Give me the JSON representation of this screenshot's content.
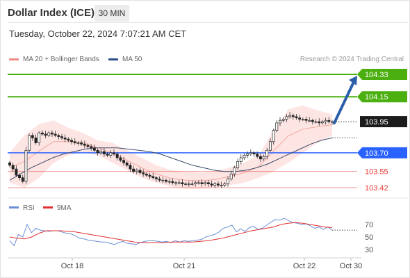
{
  "header": {
    "title": "Dollar Index (ICE)",
    "interval": "30 MIN",
    "timestamp": "Tuesday, October 22, 2024 7:07:21 AM CET"
  },
  "legend": {
    "ma20_label": "MA 20 + Bollinger Bands",
    "ma50_label": "MA 50",
    "research": "Research © 2024 Trading Central"
  },
  "colors": {
    "green": "#4caf10",
    "blue": "#2962ff",
    "red": "#e53935",
    "dark": "#1c1c1c",
    "bollinger": "#fde0de",
    "ma50": "#3a4a6b",
    "rsi": "#6a8fd6",
    "rsi_ma": "#e03030",
    "arrow": "#2b5ea8"
  },
  "chart_data": [
    {
      "type": "candlestick",
      "title": "Dollar Index (ICE)",
      "x_tick_labels": [
        "Oct 18",
        "Oct 21",
        "Oct 22",
        "Oct 30"
      ],
      "price_levels": [
        {
          "label": "104.33",
          "value": 104.33,
          "color": "#4caf10",
          "style": "resistance"
        },
        {
          "label": "104.15",
          "value": 104.15,
          "color": "#4caf10",
          "style": "resistance"
        },
        {
          "label": "103.95",
          "value": 103.95,
          "color": "#1c1c1c",
          "style": "last"
        },
        {
          "label": "103.70",
          "value": 103.7,
          "color": "#2962ff",
          "style": "pivot"
        },
        {
          "label": "103.55",
          "value": 103.55,
          "color": "#e53935",
          "style": "support"
        },
        {
          "label": "103.42",
          "value": 103.42,
          "color": "#e53935",
          "style": "support"
        }
      ],
      "close_prices": [
        103.6,
        103.57,
        103.52,
        103.5,
        103.47,
        103.72,
        103.84,
        103.82,
        103.78,
        103.86,
        103.85,
        103.84,
        103.86,
        103.85,
        103.84,
        103.83,
        103.82,
        103.81,
        103.8,
        103.79,
        103.78,
        103.78,
        103.77,
        103.76,
        103.75,
        103.74,
        103.72,
        103.7,
        103.71,
        103.69,
        103.68,
        103.7,
        103.69,
        103.66,
        103.64,
        103.62,
        103.6,
        103.57,
        103.55,
        103.56,
        103.54,
        103.53,
        103.52,
        103.51,
        103.5,
        103.49,
        103.48,
        103.48,
        103.47,
        103.47,
        103.46,
        103.46,
        103.46,
        103.45,
        103.45,
        103.45,
        103.45,
        103.46,
        103.46,
        103.45,
        103.46,
        103.45,
        103.44,
        103.45,
        103.44,
        103.44,
        103.45,
        103.49,
        103.53,
        103.58,
        103.63,
        103.66,
        103.68,
        103.69,
        103.7,
        103.69,
        103.67,
        103.65,
        103.67,
        103.72,
        103.79,
        103.88,
        103.94,
        103.96,
        103.97,
        103.99,
        104.0,
        103.99,
        103.98,
        103.97,
        103.97,
        103.96,
        103.96,
        103.95,
        103.95,
        103.94,
        103.95,
        103.96,
        103.95,
        103.95
      ],
      "ma50": [
        103.48,
        103.53,
        103.58,
        103.62,
        103.66,
        103.69,
        103.71,
        103.73,
        103.74,
        103.74,
        103.74,
        103.73,
        103.72,
        103.71,
        103.69,
        103.66,
        103.63,
        103.6,
        103.58,
        103.56,
        103.55,
        103.55,
        103.56,
        103.58,
        103.61,
        103.65,
        103.69,
        103.73,
        103.77,
        103.8,
        103.82
      ],
      "bollinger_upper": [
        103.7,
        103.84,
        103.93,
        103.96,
        103.9,
        103.86,
        103.8,
        103.78,
        103.72,
        103.66,
        103.6,
        103.56,
        103.55,
        103.54,
        103.55,
        103.58,
        103.62,
        103.68,
        103.88,
        104.05,
        104.08,
        104.04,
        104.01
      ],
      "bollinger_lower": [
        103.46,
        103.42,
        103.5,
        103.62,
        103.68,
        103.7,
        103.68,
        103.62,
        103.56,
        103.5,
        103.46,
        103.43,
        103.41,
        103.41,
        103.42,
        103.44,
        103.46,
        103.5,
        103.55,
        103.62,
        103.7,
        103.78,
        103.84
      ],
      "forecast_target": 104.33
    },
    {
      "type": "line",
      "title": "RSI",
      "series": [
        {
          "name": "RSI",
          "values": [
            44,
            36,
            54,
            50,
            70,
            57,
            64,
            61,
            60,
            59,
            60,
            60,
            58,
            56,
            55,
            52,
            48,
            47,
            45,
            44,
            43,
            42,
            42,
            40,
            38,
            41,
            43,
            40,
            39,
            38,
            41,
            43,
            44,
            44,
            43,
            42,
            43,
            41,
            44,
            42,
            44,
            43,
            44,
            45,
            46,
            50,
            52,
            54,
            58,
            64,
            66,
            69,
            58,
            63,
            59,
            65,
            67,
            62,
            64,
            69,
            74,
            78,
            77,
            80,
            76,
            73,
            72,
            70,
            71,
            68,
            64,
            66,
            62,
            66,
            61
          ]
        },
        {
          "name": "9MA",
          "values": [
            50,
            48,
            47,
            50,
            56,
            60,
            60,
            60,
            59,
            58,
            56,
            54,
            52,
            50,
            48,
            46,
            44,
            42,
            41,
            41,
            41,
            41,
            42,
            42,
            42,
            42,
            43,
            44,
            46,
            48,
            51,
            54,
            57,
            60,
            62,
            64,
            66,
            70,
            72,
            73,
            72,
            70,
            68,
            66,
            65
          ]
        }
      ],
      "y_tick_labels": [
        "70",
        "50",
        "30"
      ],
      "ylim": [
        20,
        82
      ]
    }
  ]
}
